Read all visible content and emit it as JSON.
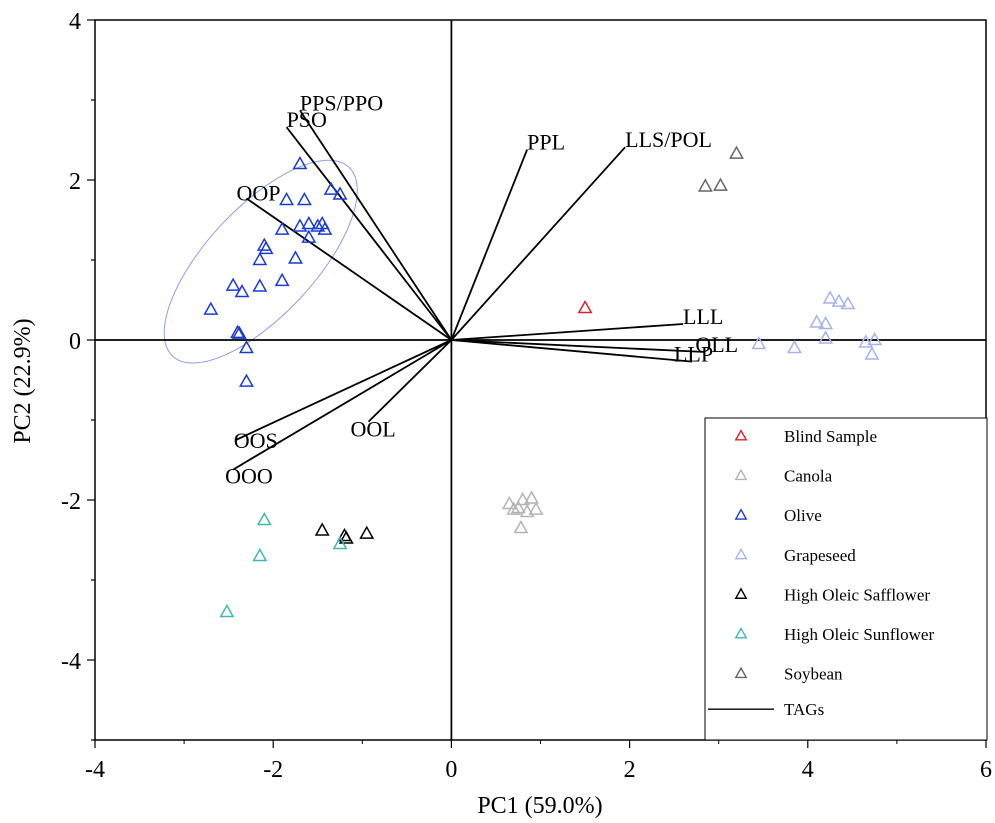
{
  "chart_data": {
    "type": "scatter",
    "xlabel": "PC1 (59.0%)",
    "ylabel": "PC2 (22.9%)",
    "xlim": [
      -4,
      6
    ],
    "ylim": [
      -5,
      4
    ],
    "xticks": [
      "-4",
      "-2",
      "0",
      "2",
      "4",
      "6"
    ],
    "yticks": [
      "-4",
      "-2",
      "0",
      "2",
      "4"
    ],
    "ytick_values": [
      -4,
      -2,
      0,
      2,
      4
    ],
    "xtick_values": [
      -4,
      -2,
      0,
      2,
      4,
      6
    ],
    "legend_position": "bottom-right",
    "series": [
      {
        "name": "Blind Sample",
        "color": "#e0202a",
        "marker": "open-triangle",
        "points": [
          [
            1.5,
            0.4
          ]
        ]
      },
      {
        "name": "Canola",
        "color": "#b4b4b4",
        "marker": "open-triangle",
        "points": [
          [
            0.65,
            -2.05
          ],
          [
            0.75,
            -2.1
          ],
          [
            0.8,
            -2.0
          ],
          [
            0.9,
            -1.98
          ],
          [
            0.95,
            -2.12
          ],
          [
            0.85,
            -2.15
          ],
          [
            0.78,
            -2.35
          ],
          [
            0.7,
            -2.12
          ]
        ]
      },
      {
        "name": "Olive",
        "color": "#1a3bd6",
        "marker": "open-triangle",
        "points": [
          [
            -1.7,
            2.2
          ],
          [
            -1.65,
            1.75
          ],
          [
            -1.85,
            1.75
          ],
          [
            -1.35,
            1.88
          ],
          [
            -1.25,
            1.82
          ],
          [
            -1.9,
            1.38
          ],
          [
            -1.7,
            1.42
          ],
          [
            -1.6,
            1.45
          ],
          [
            -1.5,
            1.42
          ],
          [
            -1.45,
            1.45
          ],
          [
            -1.42,
            1.38
          ],
          [
            -1.6,
            1.28
          ],
          [
            -2.1,
            1.18
          ],
          [
            -2.08,
            1.14
          ],
          [
            -2.15,
            1.0
          ],
          [
            -1.75,
            1.02
          ],
          [
            -1.9,
            0.74
          ],
          [
            -2.45,
            0.68
          ],
          [
            -2.15,
            0.67
          ],
          [
            -2.35,
            0.6
          ],
          [
            -2.7,
            0.38
          ],
          [
            -2.4,
            0.09
          ],
          [
            -2.38,
            0.08
          ],
          [
            -2.3,
            -0.1
          ],
          [
            -2.3,
            -0.52
          ]
        ]
      },
      {
        "name": "Grapeseed",
        "color": "#a8b2ec",
        "marker": "open-triangle",
        "points": [
          [
            4.25,
            0.52
          ],
          [
            4.35,
            0.48
          ],
          [
            4.45,
            0.45
          ],
          [
            4.1,
            0.22
          ],
          [
            4.2,
            0.2
          ],
          [
            4.2,
            0.02
          ],
          [
            3.45,
            -0.05
          ],
          [
            3.85,
            -0.1
          ],
          [
            4.65,
            -0.03
          ],
          [
            4.75,
            0.0
          ],
          [
            4.72,
            -0.18
          ]
        ]
      },
      {
        "name": "High Oleic Safflower",
        "color": "#000000",
        "marker": "open-triangle",
        "points": [
          [
            -1.45,
            -2.38
          ],
          [
            -1.2,
            -2.45
          ],
          [
            -1.18,
            -2.48
          ],
          [
            -0.95,
            -2.42
          ]
        ]
      },
      {
        "name": "High Oleic Sunflower",
        "color": "#3fb8b2",
        "marker": "open-triangle",
        "points": [
          [
            -2.1,
            -2.25
          ],
          [
            -2.15,
            -2.7
          ],
          [
            -1.25,
            -2.55
          ],
          [
            -2.52,
            -3.4
          ]
        ]
      },
      {
        "name": "Soybean",
        "color": "#666666",
        "marker": "open-triangle",
        "points": [
          [
            3.2,
            2.33
          ],
          [
            2.85,
            1.92
          ],
          [
            3.02,
            1.93
          ]
        ]
      }
    ],
    "loadings_name": "TAGs",
    "loadings": [
      {
        "label": "PPS/PPO",
        "x": -1.7,
        "y": 2.87
      },
      {
        "label": "PSO",
        "x": -1.85,
        "y": 2.66
      },
      {
        "label": "OOP",
        "x": -2.3,
        "y": 1.77
      },
      {
        "label": "PPL",
        "x": 0.85,
        "y": 2.38
      },
      {
        "label": "LLS/POL",
        "x": 1.95,
        "y": 2.41
      },
      {
        "label": "LLL",
        "x": 2.6,
        "y": 0.2
      },
      {
        "label": "OLL",
        "x": 2.85,
        "y": -0.15
      },
      {
        "label": "LLP",
        "x": 2.7,
        "y": -0.27
      },
      {
        "label": "OOL",
        "x": -0.93,
        "y": -1.02
      },
      {
        "label": "OOS",
        "x": -2.42,
        "y": -1.25
      },
      {
        "label": "OOO",
        "x": -2.45,
        "y": -1.62
      }
    ],
    "ellipse": {
      "series": "Olive",
      "cx": -2.14,
      "cy": 0.98,
      "a": 2.9,
      "b": 0.55,
      "angle_deg": 47
    }
  }
}
